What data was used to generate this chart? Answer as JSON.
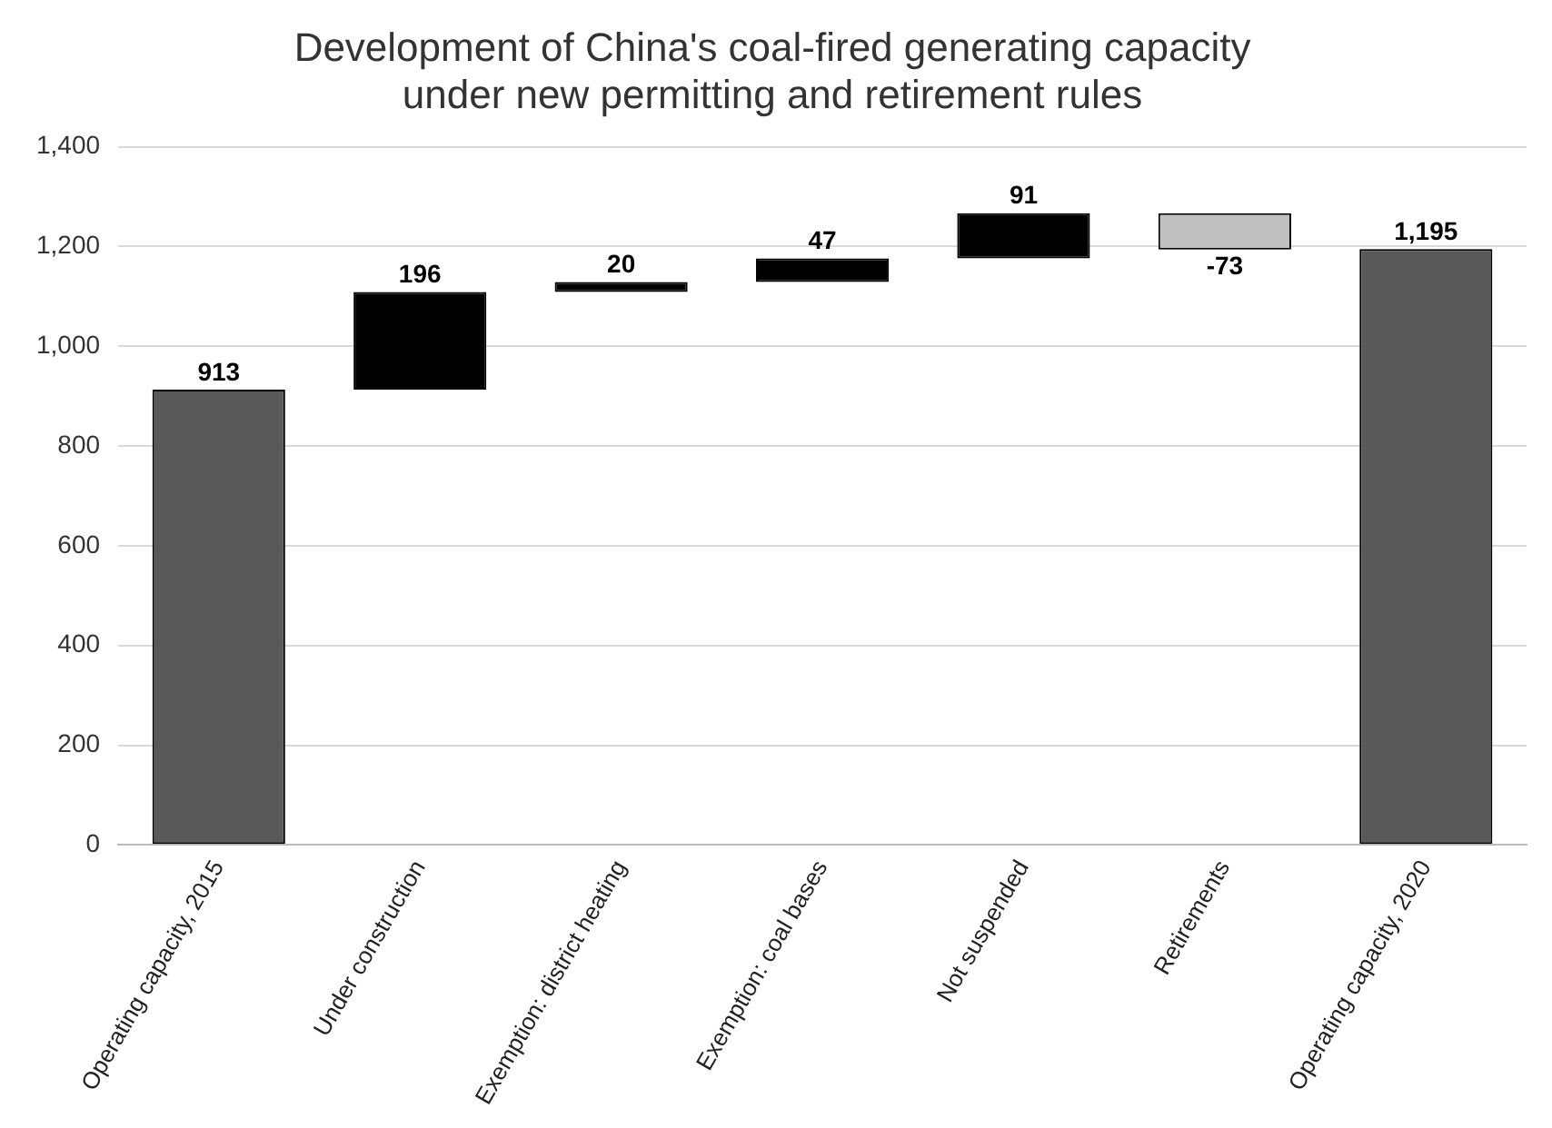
{
  "chart_data": {
    "type": "bar",
    "title": "Development of China's coal-fired generating capacity\nunder new permitting and retirement rules",
    "categories": [
      "Operating capacity, 2015",
      "Under construction",
      "Exemption: district heating",
      "Exemption: coal bases",
      "Not suspended",
      "Retirements",
      "Operating capacity, 2020"
    ],
    "values": [
      913,
      196,
      20,
      47,
      91,
      -73,
      1195
    ],
    "base": [
      0,
      913,
      1109,
      1129,
      1176,
      1267,
      0
    ],
    "colors": [
      "#595959",
      "#000000",
      "#000000",
      "#000000",
      "#000000",
      "#c0c0c0",
      "#595959"
    ],
    "value_labels": [
      "913",
      "196",
      "20",
      "47",
      "91",
      "-73",
      "1,195"
    ],
    "ylim": [
      0,
      1400
    ],
    "yticks": [
      {
        "value": 0,
        "label": "0"
      },
      {
        "value": 200,
        "label": "200"
      },
      {
        "value": 400,
        "label": "400"
      },
      {
        "value": 600,
        "label": "600"
      },
      {
        "value": 800,
        "label": "800"
      },
      {
        "value": 1000,
        "label": "1,000"
      },
      {
        "value": 1200,
        "label": "1,200"
      },
      {
        "value": 1400,
        "label": "1,400"
      }
    ],
    "grid": "y"
  }
}
